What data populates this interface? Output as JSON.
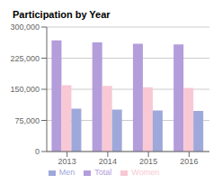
{
  "chart_data": {
    "type": "bar",
    "title": "Participation by Year",
    "categories": [
      "2013",
      "2014",
      "2015",
      "2016"
    ],
    "series": [
      {
        "name": "Total",
        "color": "#b39ddb",
        "values": [
          268000,
          263000,
          260000,
          258000
        ]
      },
      {
        "name": "Women",
        "color": "#f8c8d4",
        "values": [
          160000,
          158000,
          155000,
          153000
        ]
      },
      {
        "name": "Men",
        "color": "#9fa8da",
        "values": [
          103000,
          101000,
          99000,
          98000
        ]
      }
    ],
    "ylim": [
      0,
      300000
    ],
    "yticks": [
      0,
      {
        "value": 75000,
        "label": "75,000"
      },
      {
        "value": 150000,
        "label": "150,000"
      },
      {
        "value": 225000,
        "label": "225,000"
      },
      {
        "value": 300000,
        "label": "300,000"
      }
    ],
    "grid": true,
    "legend": "bottom"
  }
}
